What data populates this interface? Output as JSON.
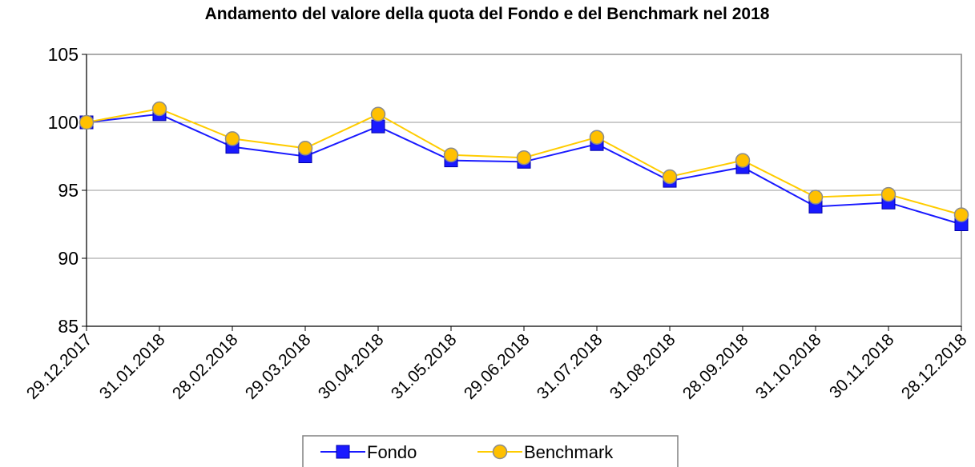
{
  "chart_data": {
    "type": "line",
    "title": "Andamento del valore della quota del Fondo e del Benchmark nel 2018",
    "categories": [
      "29.12.2017",
      "31.01.2018",
      "28.02.2018",
      "29.03.2018",
      "30.04.2018",
      "31.05.2018",
      "29.06.2018",
      "31.07.2018",
      "31.08.2018",
      "28.09.2018",
      "31.10.2018",
      "30.11.2018",
      "28.12.2018"
    ],
    "series": [
      {
        "name": "Fondo",
        "color": "#1a1aff",
        "marker": "square",
        "values": [
          100,
          100.6,
          98.2,
          97.5,
          99.7,
          97.2,
          97.1,
          98.4,
          95.7,
          96.7,
          93.8,
          94.1,
          92.5
        ]
      },
      {
        "name": "Benchmark",
        "color": "#ffcc00",
        "marker": "circle",
        "values": [
          100,
          101.0,
          98.8,
          98.1,
          100.6,
          97.6,
          97.4,
          98.9,
          96.0,
          97.2,
          94.5,
          94.7,
          93.2
        ]
      }
    ],
    "ylim": [
      85,
      105
    ],
    "yticks": [
      85,
      90,
      95,
      100,
      105
    ],
    "grid": true,
    "legend": "bottom"
  }
}
